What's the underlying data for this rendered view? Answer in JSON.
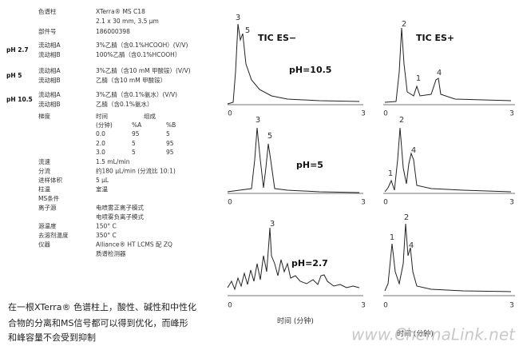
{
  "conditions": {
    "column": {
      "label": "色谱柱",
      "lines": [
        "XTerra® MS C18",
        "2.1 x 30 mm, 3.5 µm"
      ]
    },
    "part": {
      "label": "部件号",
      "value": "186000398"
    },
    "mobile_phases": [
      {
        "ph": "pH 2.7",
        "a_label": "流动相A",
        "a": "3%乙腈（含0.1%HCOOH）(V/V)",
        "b_label": "流动相B",
        "b": "100%乙腈（含0.1%HCOOH）"
      },
      {
        "ph": "pH 5",
        "a_label": "流动相A",
        "a": "3%乙腈（含10 mM 甲酸铵）(V/V)",
        "b_label": "流动相B",
        "b": "乙腈（含10 mM 甲酸铵）"
      },
      {
        "ph": "pH 10.5",
        "a_label": "流动相A",
        "a": "3%乙腈（含0.1%氨水）(V/V)",
        "b_label": "流动相B",
        "b": "乙腈（含0.1%氨水）"
      }
    ],
    "gradient": {
      "label": "梯度",
      "header1": [
        "时间",
        "组成"
      ],
      "header2": [
        "(分钟)",
        "%A",
        "%B"
      ],
      "rows": [
        [
          "0.0",
          "95",
          "5"
        ],
        [
          "2.0",
          "5",
          "95"
        ],
        [
          "3.0",
          "5",
          "95"
        ]
      ]
    },
    "rows": [
      [
        "流速",
        "1.5 mL/min"
      ],
      [
        "分流",
        "约180 µL/min (分流比 10:1)"
      ],
      [
        "进样体积",
        "5 µL"
      ],
      [
        "柱温",
        "室温"
      ],
      [
        "MS条件",
        ""
      ],
      [
        "离子源",
        "电喷雾正离子模式"
      ],
      [
        "",
        "电喷雾负离子模式"
      ],
      [
        "源温度",
        "150° C"
      ],
      [
        "去溶剂温度",
        "350° C"
      ],
      [
        "仪器",
        "Alliance® HT LCMS 配 ZQ"
      ],
      [
        "",
        "质谱检测器"
      ]
    ]
  },
  "caption": [
    "在一根XTerra® 色谱柱上，酸性、碱性和中性化",
    "合物的分离和MS信号都可以得到优化，而峰形",
    "和峰容量不会受到抑制"
  ],
  "panels": {
    "neg_title": "TIC ES−",
    "pos_title": "TIC ES+",
    "ph_labels": [
      "pH=10.5",
      "pH=5",
      "pH=2.7"
    ],
    "x_start": "0",
    "x_end": "3",
    "x_title": "时间 (分钟)",
    "peaks": [
      [
        "3",
        "5",
        "2",
        "1",
        "4"
      ],
      [
        "3",
        "5",
        "2",
        "4",
        "1"
      ],
      [
        "3",
        "2",
        "1",
        "4"
      ]
    ]
  },
  "watermark": "www.ChemaLink.net"
}
